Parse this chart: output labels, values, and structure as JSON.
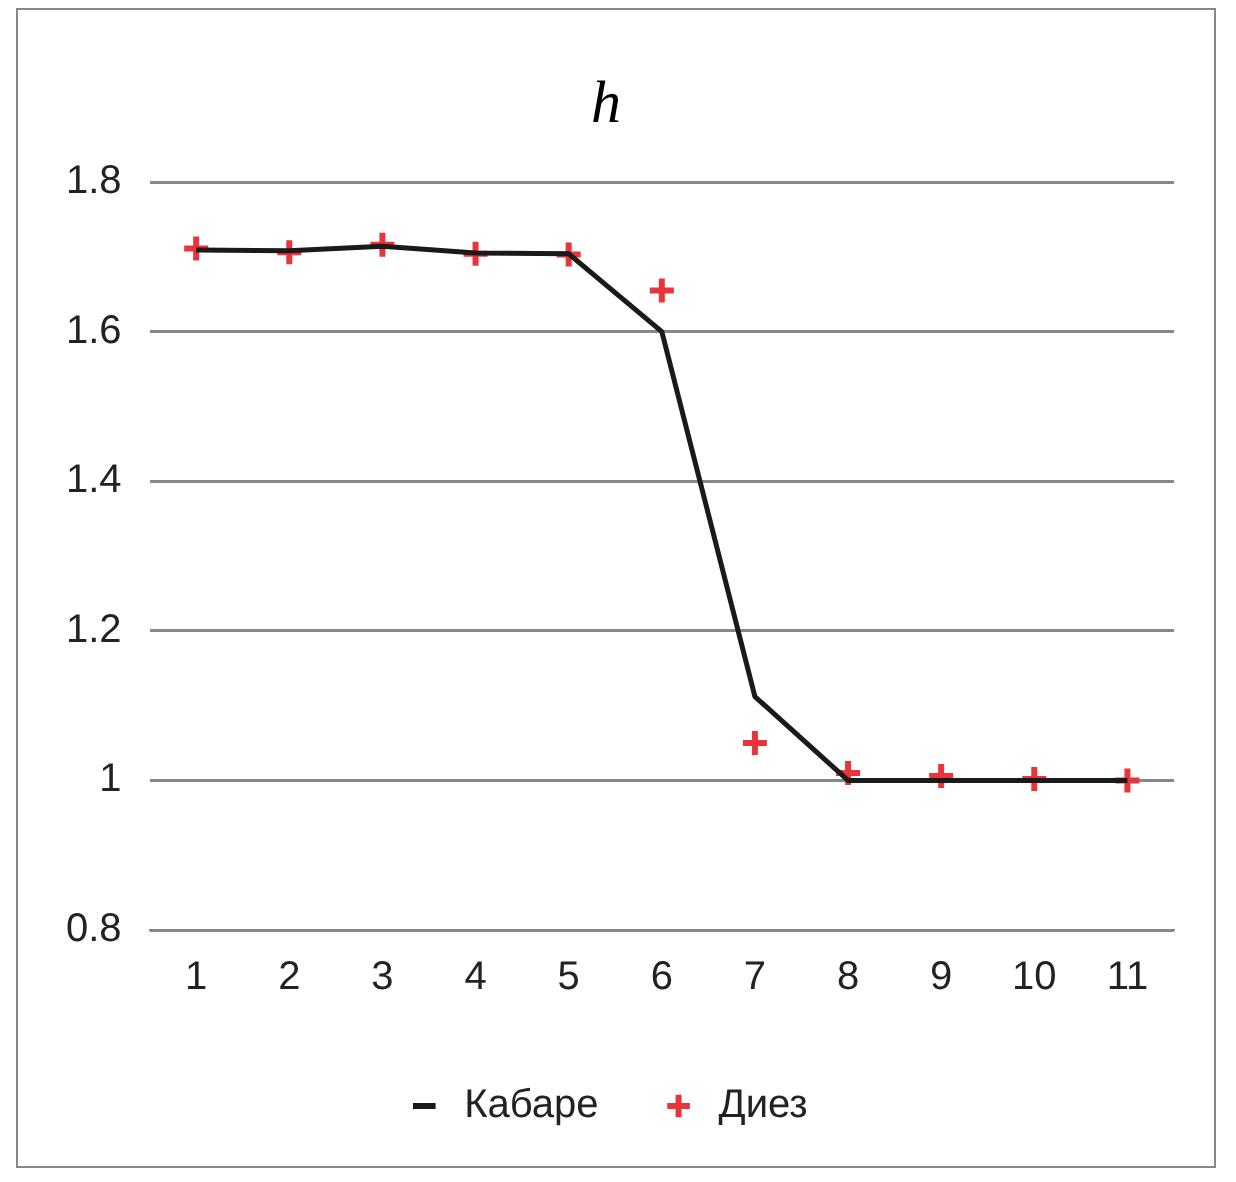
{
  "chart_data": {
    "type": "line",
    "title": "h",
    "categories": [
      "1",
      "2",
      "3",
      "4",
      "5",
      "6",
      "7",
      "8",
      "9",
      "10",
      "11"
    ],
    "series": [
      {
        "name": "Кабаре",
        "type": "line",
        "color": "#1a1a1a",
        "marker": "none",
        "line_style": "solid",
        "values": [
          1.709,
          1.708,
          1.714,
          1.705,
          1.704,
          1.6,
          1.112,
          1.0,
          1.0,
          1.0,
          1.0
        ]
      },
      {
        "name": "Диез",
        "type": "scatter",
        "color": "#e8343a",
        "marker": "cross",
        "values": [
          1.711,
          1.706,
          1.716,
          1.704,
          1.703,
          1.655,
          1.05,
          1.01,
          1.006,
          1.002,
          1.0
        ]
      }
    ],
    "ylim": [
      0.8,
      1.8
    ],
    "yticks": [
      0.8,
      1,
      1.2,
      1.4,
      1.6,
      1.8
    ],
    "grid": "y",
    "legend": "bottom"
  }
}
